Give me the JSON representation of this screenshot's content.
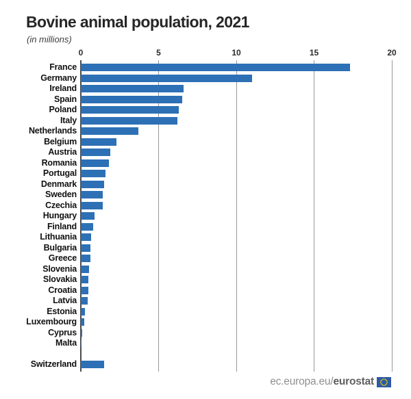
{
  "header": {
    "title": "Bovine animal population, 2021",
    "subtitle": "(in millions)"
  },
  "footer": {
    "url_prefix": "ec.europa.eu/",
    "url_bold": "eurostat",
    "logo": "eu-flag-icon"
  },
  "colors": {
    "bar": "#2d70b5",
    "gridline": "#979797",
    "zero_axis": "#4a4a4a",
    "title_text": "#262626",
    "country_label": "#111111",
    "footer_gray": "#8f8f8f",
    "footer_dark": "#5f5f5f",
    "flag_blue": "#2c5aa5",
    "flag_stars": "#f2cb00"
  },
  "chart_data": {
    "type": "bar",
    "orientation": "horizontal",
    "title": "Bovine animal population, 2021",
    "subtitle": "(in millions)",
    "unit": "millions of heads",
    "xlabel": "",
    "ylabel": "",
    "xlim": [
      0,
      20
    ],
    "xticks": [
      0,
      5,
      10,
      15,
      20
    ],
    "grid": true,
    "legend": false,
    "bar_color": "#2d70b5",
    "categories": [
      "France",
      "Germany",
      "Ireland",
      "Spain",
      "Poland",
      "Italy",
      "Netherlands",
      "Belgium",
      "Austria",
      "Romania",
      "Portugal",
      "Denmark",
      "Sweden",
      "Czechia",
      "Hungary",
      "Finland",
      "Lithuania",
      "Bulgaria",
      "Greece",
      "Slovenia",
      "Slovakia",
      "Croatia",
      "Latvia",
      "Estonia",
      "Luxembourg",
      "Cyprus",
      "Malta",
      "Switzerland"
    ],
    "values": [
      17.3,
      11.0,
      6.6,
      6.5,
      6.3,
      6.2,
      3.7,
      2.3,
      1.9,
      1.8,
      1.6,
      1.5,
      1.4,
      1.4,
      0.9,
      0.8,
      0.65,
      0.6,
      0.6,
      0.55,
      0.5,
      0.48,
      0.45,
      0.27,
      0.2,
      0.1,
      0.03,
      1.5
    ],
    "separator_before": "Switzerland"
  }
}
